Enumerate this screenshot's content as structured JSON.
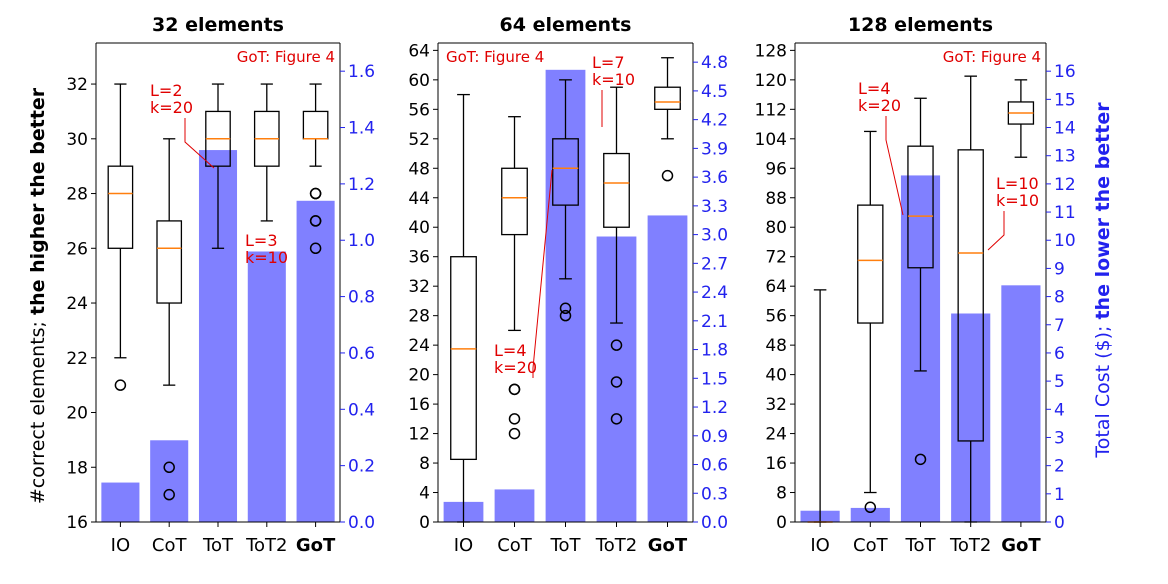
{
  "figure": {
    "left_ylabel": {
      "prefix": "#correct elements; ",
      "bold": "the higher the better"
    },
    "right_ylabel": {
      "prefix": "Total Cost ($); ",
      "bold": "the lower the better"
    }
  },
  "chart_data": [
    {
      "type": "bar",
      "title": "32 elements",
      "categories": [
        "IO",
        "CoT",
        "ToT",
        "ToT2",
        "GoT"
      ],
      "bold_category": "GoT",
      "ylim": [
        16,
        33.5
      ],
      "yticks": [
        16,
        18,
        20,
        22,
        24,
        26,
        28,
        30,
        32
      ],
      "y2lim": [
        0,
        1.7
      ],
      "y2ticks": [
        "0.0",
        "0.2",
        "0.4",
        "0.6",
        "0.8",
        "1.0",
        "1.2",
        "1.4",
        "1.6"
      ],
      "cost_bars": [
        0.14,
        0.29,
        1.32,
        0.96,
        1.14
      ],
      "boxes": [
        {
          "whislo": 22,
          "q1": 26,
          "med": 28,
          "q3": 29,
          "whishi": 32,
          "fliers": [
            21
          ]
        },
        {
          "whislo": 21,
          "q1": 24,
          "med": 26,
          "q3": 27,
          "whishi": 30,
          "fliers": [
            18,
            17
          ]
        },
        {
          "whislo": 26,
          "q1": 29,
          "med": 30,
          "q3": 31,
          "whishi": 32,
          "fliers": []
        },
        {
          "whislo": 27,
          "q1": 29,
          "med": 30,
          "q3": 31,
          "whishi": 32,
          "fliers": []
        },
        {
          "whislo": 29,
          "q1": 30,
          "med": 30,
          "q3": 31,
          "whishi": 32,
          "fliers": [
            28,
            28,
            27,
            27,
            26
          ]
        }
      ],
      "annotations": [
        {
          "text": "GoT: Figure 4",
          "anchor": "top-right"
        },
        {
          "lines": [
            "L=2",
            "k=20"
          ],
          "target": "ToT"
        },
        {
          "lines": [
            "L=3",
            "k=10"
          ],
          "target": "ToT2"
        }
      ]
    },
    {
      "type": "bar",
      "title": "64 elements",
      "categories": [
        "IO",
        "CoT",
        "ToT",
        "ToT2",
        "GoT"
      ],
      "bold_category": "GoT",
      "ylim": [
        0,
        65
      ],
      "yticks": [
        0,
        4,
        8,
        12,
        16,
        20,
        24,
        28,
        32,
        36,
        40,
        44,
        48,
        52,
        56,
        60,
        64
      ],
      "y2lim": [
        0,
        5.0
      ],
      "y2ticks": [
        "0.0",
        "0.3",
        "0.6",
        "0.9",
        "1.2",
        "1.5",
        "1.8",
        "2.1",
        "2.4",
        "2.7",
        "3.0",
        "3.3",
        "3.6",
        "3.9",
        "4.2",
        "4.5",
        "4.8"
      ],
      "cost_bars": [
        0.21,
        0.34,
        4.72,
        2.98,
        3.2
      ],
      "boxes": [
        {
          "whislo": 0,
          "q1": 8.5,
          "med": 23.5,
          "q3": 36,
          "whishi": 58,
          "fliers": []
        },
        {
          "whislo": 26,
          "q1": 39,
          "med": 44,
          "q3": 48,
          "whishi": 55,
          "fliers": [
            18,
            18,
            14,
            12
          ]
        },
        {
          "whislo": 33,
          "q1": 43,
          "med": 48,
          "q3": 52,
          "whishi": 60,
          "fliers": [
            29,
            28
          ]
        },
        {
          "whislo": 27,
          "q1": 40,
          "med": 46,
          "q3": 50,
          "whishi": 59,
          "fliers": [
            24,
            19,
            14
          ]
        },
        {
          "whislo": 52,
          "q1": 56,
          "med": 57,
          "q3": 59,
          "whishi": 63,
          "fliers": [
            47
          ]
        }
      ],
      "annotations": [
        {
          "text": "GoT: Figure 4",
          "anchor": "top-left"
        },
        {
          "lines": [
            "L=4",
            "k=20"
          ],
          "target": "ToT"
        },
        {
          "lines": [
            "L=7",
            "k=10"
          ],
          "target": "ToT2"
        }
      ]
    },
    {
      "type": "bar",
      "title": "128 elements",
      "categories": [
        "IO",
        "CoT",
        "ToT",
        "ToT2",
        "GoT"
      ],
      "bold_category": "GoT",
      "ylim": [
        0,
        130
      ],
      "yticks": [
        0,
        8,
        16,
        24,
        32,
        40,
        48,
        56,
        64,
        72,
        80,
        88,
        96,
        104,
        112,
        120,
        128
      ],
      "y2lim": [
        0,
        17
      ],
      "y2ticks": [
        "0",
        "1",
        "2",
        "3",
        "4",
        "5",
        "6",
        "7",
        "8",
        "9",
        "10",
        "11",
        "12",
        "13",
        "14",
        "15",
        "16"
      ],
      "cost_bars": [
        0.4,
        0.5,
        12.3,
        7.4,
        8.4
      ],
      "boxes": [
        {
          "whislo": 0,
          "q1": 0,
          "med": 0,
          "q3": 0,
          "whishi": 63,
          "fliers": []
        },
        {
          "whislo": 8,
          "q1": 54,
          "med": 71,
          "q3": 86,
          "whishi": 106,
          "fliers": [
            4
          ]
        },
        {
          "whislo": 41,
          "q1": 69,
          "med": 83,
          "q3": 102,
          "whishi": 115,
          "fliers": [
            17
          ]
        },
        {
          "whislo": 0,
          "q1": 22,
          "med": 73,
          "q3": 101,
          "whishi": 121,
          "fliers": []
        },
        {
          "whislo": 99,
          "q1": 108,
          "med": 111,
          "q3": 114,
          "whishi": 120,
          "fliers": []
        }
      ],
      "annotations": [
        {
          "text": "GoT: Figure 4",
          "anchor": "top-right"
        },
        {
          "lines": [
            "L=4",
            "k=20"
          ],
          "target": "ToT"
        },
        {
          "lines": [
            "L=10",
            "k=10"
          ],
          "target": "ToT2"
        }
      ]
    }
  ],
  "colors": {
    "bar": "#8080ff",
    "right_axis": "#2222ee",
    "median": "#ff7f0e",
    "annotation": "#e00000",
    "axis": "#000000"
  }
}
